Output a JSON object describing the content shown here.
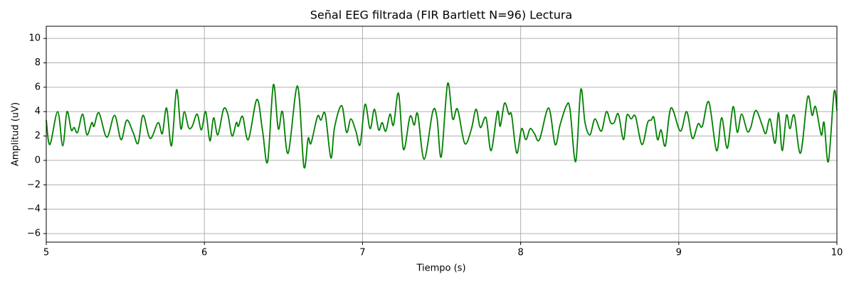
{
  "chart_data": {
    "type": "line",
    "title": "Señal EEG filtrada (FIR Bartlett N=96) Lectura",
    "x_label": "Tiempo (s)",
    "y_label": "Amplitud (uV)",
    "xlim": [
      5,
      10
    ],
    "ylim": [
      -6.7,
      11
    ],
    "xticks": [
      5,
      6,
      7,
      8,
      9,
      10
    ],
    "yticks": [
      {
        "value": -6,
        "label": "−6"
      },
      {
        "value": -4,
        "label": "−4"
      },
      {
        "value": -2,
        "label": "−2"
      },
      0,
      2,
      4,
      6,
      8,
      10
    ],
    "grid": true,
    "x": [
      5.0,
      5.023,
      5.072,
      5.104,
      5.131,
      5.158,
      5.176,
      5.198,
      5.23,
      5.257,
      5.288,
      5.302,
      5.333,
      5.383,
      5.432,
      5.473,
      5.509,
      5.549,
      5.581,
      5.612,
      5.657,
      5.707,
      5.734,
      5.761,
      5.792,
      5.824,
      5.851,
      5.873,
      5.9,
      5.923,
      5.954,
      5.981,
      6.008,
      6.035,
      6.058,
      6.085,
      6.121,
      6.148,
      6.175,
      6.202,
      6.215,
      6.242,
      6.278,
      6.332,
      6.368,
      6.4,
      6.436,
      6.467,
      6.494,
      6.53,
      6.589,
      6.629,
      6.656,
      6.674,
      6.715,
      6.737,
      6.764,
      6.8,
      6.823,
      6.868,
      6.899,
      6.926,
      6.958,
      6.985,
      7.016,
      7.048,
      7.075,
      7.102,
      7.124,
      7.147,
      7.174,
      7.196,
      7.228,
      7.259,
      7.3,
      7.327,
      7.349,
      7.39,
      7.444,
      7.471,
      7.498,
      7.538,
      7.57,
      7.601,
      7.646,
      7.687,
      7.718,
      7.745,
      7.781,
      7.813,
      7.853,
      7.871,
      7.898,
      7.925,
      7.943,
      7.975,
      8.006,
      8.033,
      8.06,
      8.087,
      8.119,
      8.177,
      8.218,
      8.249,
      8.29,
      8.312,
      8.348,
      8.38,
      8.407,
      8.438,
      8.47,
      8.51,
      8.542,
      8.569,
      8.591,
      8.618,
      8.65,
      8.672,
      8.699,
      8.726,
      8.767,
      8.803,
      8.825,
      8.843,
      8.866,
      8.888,
      8.915,
      8.951,
      9.01,
      9.05,
      9.086,
      9.122,
      9.149,
      9.19,
      9.239,
      9.271,
      9.307,
      9.343,
      9.37,
      9.397,
      9.433,
      9.455,
      9.487,
      9.527,
      9.55,
      9.577,
      9.609,
      9.631,
      9.654,
      9.681,
      9.703,
      9.73,
      9.77,
      9.815,
      9.843,
      9.865,
      9.901,
      9.919,
      9.946,
      9.982,
      10.0
    ],
    "series": [
      {
        "color": "#008000",
        "values": [
          3.3,
          1.3,
          4.0,
          1.2,
          4.0,
          2.5,
          2.7,
          2.3,
          3.8,
          2.1,
          3.1,
          2.8,
          3.9,
          1.9,
          3.7,
          1.7,
          3.3,
          2.3,
          1.4,
          3.7,
          1.8,
          3.1,
          2.2,
          4.3,
          1.2,
          5.8,
          2.6,
          4.0,
          2.7,
          2.8,
          3.8,
          2.5,
          4.0,
          1.6,
          3.5,
          2.1,
          4.2,
          3.8,
          2.0,
          3.1,
          2.8,
          3.6,
          1.7,
          5.0,
          2.4,
          -0.1,
          6.2,
          2.6,
          4.0,
          0.6,
          6.1,
          -0.5,
          1.8,
          1.4,
          3.6,
          3.3,
          3.8,
          0.2,
          2.7,
          4.5,
          2.3,
          3.4,
          2.4,
          1.3,
          4.6,
          2.6,
          4.2,
          2.5,
          3.1,
          2.4,
          3.8,
          2.9,
          5.5,
          0.9,
          3.6,
          2.9,
          3.8,
          0.1,
          4.0,
          3.5,
          0.3,
          6.3,
          3.4,
          4.2,
          1.4,
          2.5,
          4.2,
          2.7,
          3.5,
          0.8,
          4.0,
          2.8,
          4.7,
          3.8,
          3.7,
          0.6,
          2.6,
          1.7,
          2.6,
          2.2,
          1.7,
          4.3,
          1.3,
          2.9,
          4.5,
          4.2,
          -0.1,
          5.8,
          3.1,
          2.1,
          3.4,
          2.4,
          4.0,
          3.1,
          3.1,
          3.8,
          1.7,
          3.7,
          3.4,
          3.6,
          1.3,
          3.1,
          3.3,
          3.5,
          1.7,
          2.5,
          1.2,
          4.3,
          2.4,
          4.0,
          1.8,
          3.0,
          2.8,
          4.8,
          0.8,
          3.5,
          1.0,
          4.4,
          2.3,
          3.8,
          2.4,
          2.7,
          4.1,
          2.9,
          2.2,
          3.4,
          1.4,
          3.9,
          0.8,
          3.7,
          2.6,
          3.7,
          0.6,
          5.2,
          3.7,
          4.4,
          2.1,
          3.1,
          -0.1,
          5.6,
          4.1
        ]
      }
    ]
  }
}
